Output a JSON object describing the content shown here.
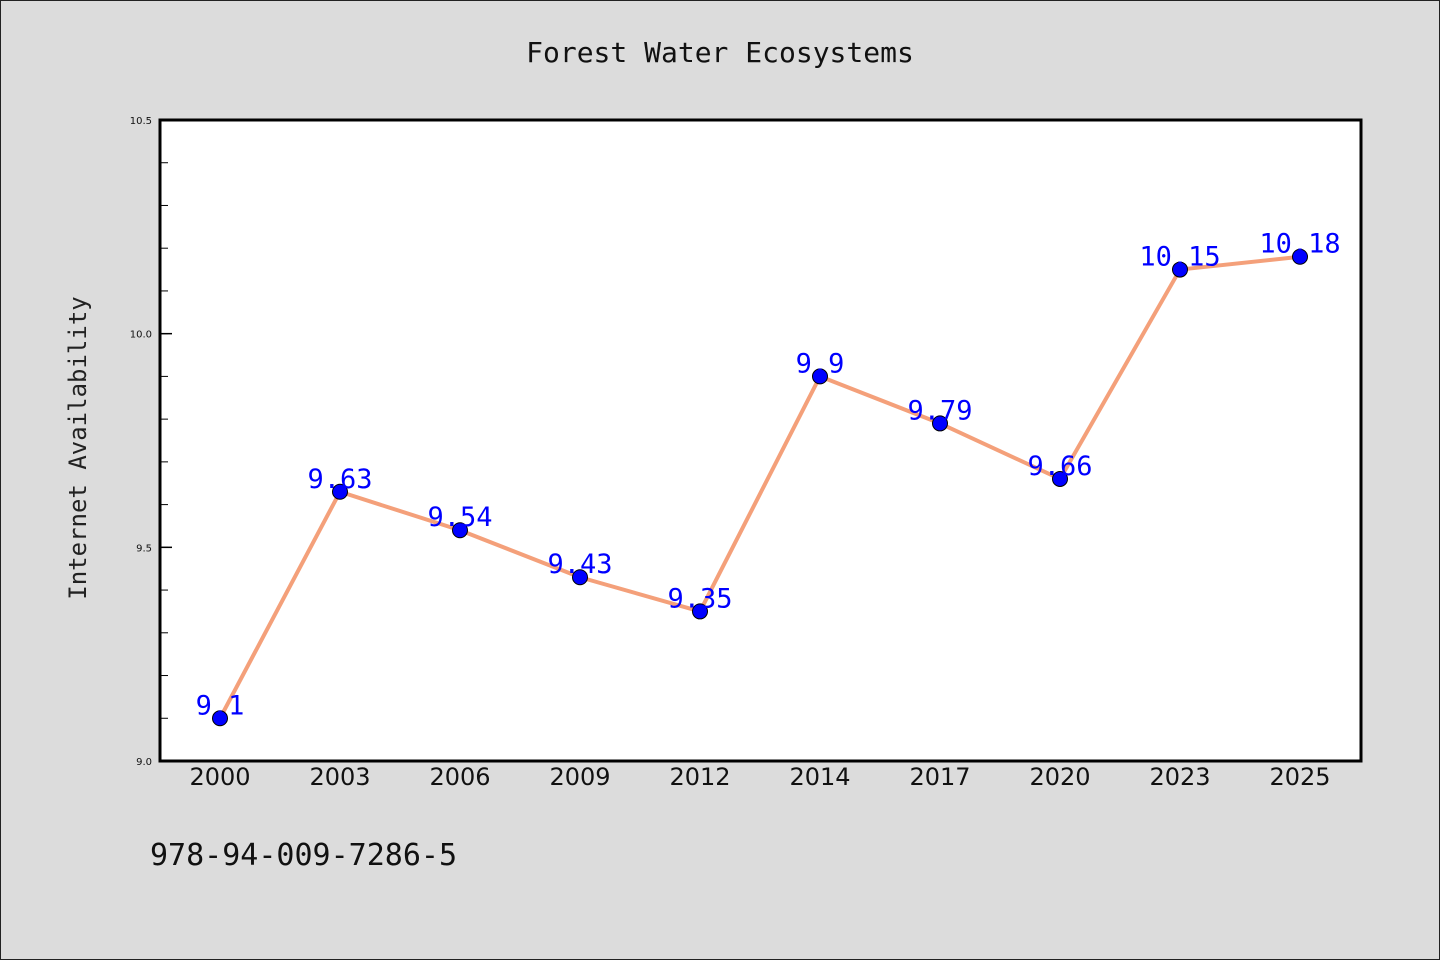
{
  "chart_data": {
    "type": "line",
    "title": "Forest Water Ecosystems",
    "ylabel": "Internet Availability",
    "xlabel": "",
    "categories": [
      "2000",
      "2003",
      "2006",
      "2009",
      "2012",
      "2014",
      "2017",
      "2020",
      "2023",
      "2025"
    ],
    "values": [
      9.1,
      9.63,
      9.54,
      9.43,
      9.35,
      9.9,
      9.79,
      9.66,
      10.15,
      10.18
    ],
    "data_labels": [
      "9.1",
      "9.63",
      "9.54",
      "9.43",
      "9.35",
      "9.9",
      "9.79",
      "9.66",
      "10.15",
      "10.18"
    ],
    "ylim": [
      9.0,
      10.5
    ],
    "yticks": [
      "9.0",
      "9.5",
      "10.0",
      "10.5"
    ],
    "grid": false,
    "line_color": "#f4a07a",
    "marker_color": "#0000ff",
    "label_color": "#0000ff",
    "footnote": "978-94-009-7286-5"
  }
}
